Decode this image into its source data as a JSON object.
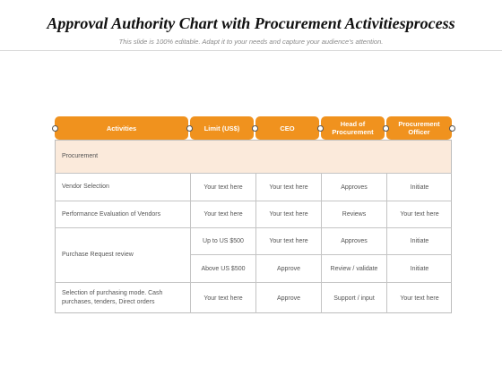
{
  "title": "Approval Authority Chart with Procurement Activitiesprocess",
  "subtitle": "This slide is 100% editable. Adapt it to your needs and capture your audience's attention.",
  "table": {
    "headers": [
      "Activities",
      "Limit (US$)",
      "CEO",
      "Head of Procurement",
      "Procurement Officer"
    ],
    "section": "Procurement",
    "rows": [
      {
        "activity": "Vendor Selection",
        "cells": [
          "Your text here",
          "Your text here",
          "Approves",
          "Initiate"
        ]
      },
      {
        "activity": "Performance Evaluation of Vendors",
        "cells": [
          "Your text here",
          "Your text here",
          "Reviews",
          "Your text here"
        ]
      },
      {
        "activity": "Purchase Request review",
        "subrows": [
          [
            "Up to US $500",
            "Your text here",
            "Approves",
            "Initiate"
          ],
          [
            "Above US $500",
            "Approve",
            "Review / validate",
            "Initiate"
          ]
        ]
      },
      {
        "activity": "Selection of purchasing mode. Cash purchases, tenders, Direct orders",
        "cells": [
          "Your text here",
          "Approve",
          "Support / input",
          "Your text here"
        ]
      }
    ]
  },
  "colors": {
    "header": "#f0921e",
    "section_bg": "#fbeadb"
  }
}
